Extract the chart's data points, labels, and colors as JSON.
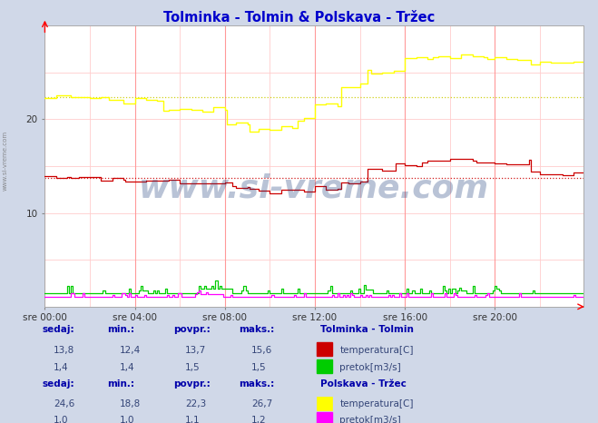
{
  "title": "Tolminka - Tolmin & Polskava - Tržec",
  "title_color": "#0000cc",
  "bg_color": "#d0d8e8",
  "plot_bg_color": "#ffffff",
  "grid_color": "#ff9999",
  "grid_minor_color": "#ffcccc",
  "x_labels": [
    "sre 00:00",
    "sre 04:00",
    "sre 08:00",
    "sre 12:00",
    "sre 16:00",
    "sre 20:00"
  ],
  "x_ticks_pos": [
    0,
    48,
    96,
    144,
    192,
    240
  ],
  "total_points": 288,
  "ylim": [
    0,
    30
  ],
  "yticks": [
    10,
    20
  ],
  "watermark": "www.si-vreme.com",
  "watermark_color": "#1a3a7a",
  "watermark_alpha": 0.3,
  "sidebar_text": "www.si-vreme.com",
  "sidebar_color": "#777777",
  "tolminka_temp_color": "#cc0000",
  "tolminka_pretok_color": "#00cc00",
  "polskava_temp_color": "#ffff00",
  "polskava_pretok_color": "#ff00ff",
  "avg_tolminka_temp": 13.7,
  "avg_polskava_temp": 22.3,
  "stats_tolminka": {
    "sedaj": 13.8,
    "min": 12.4,
    "povpr": 13.7,
    "maks": 15.6
  },
  "stats_tolminka_pretok": {
    "sedaj": 1.4,
    "min": 1.4,
    "povpr": 1.5,
    "maks": 1.5
  },
  "stats_polskava": {
    "sedaj": 24.6,
    "min": 18.8,
    "povpr": 22.3,
    "maks": 26.7
  },
  "stats_polskava_pretok": {
    "sedaj": 1.0,
    "min": 1.0,
    "povpr": 1.1,
    "maks": 1.2
  },
  "label_color": "#0000aa",
  "val_color": "#334477",
  "fs": 7.5,
  "fs_bold": 8.0
}
